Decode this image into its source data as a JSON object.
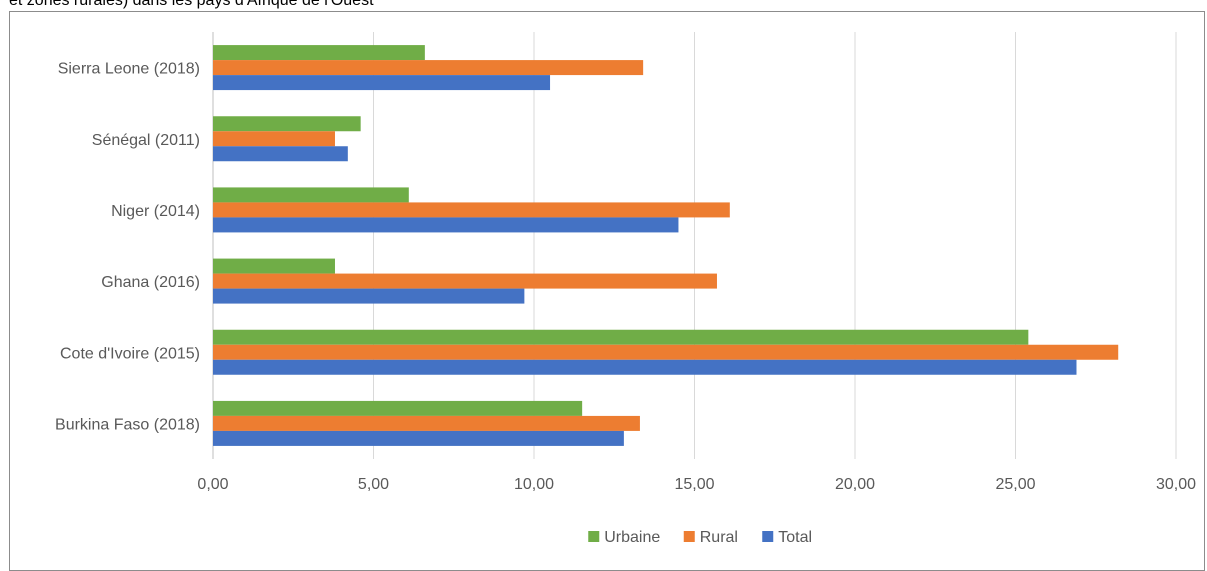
{
  "caption": "et zones rurales) dans les pays d'Afrique de l'Ouest",
  "chart_data": {
    "type": "bar",
    "orientation": "horizontal",
    "categories": [
      "Burkina Faso (2018)",
      "Cote d'Ivoire (2015)",
      "Ghana (2016)",
      "Niger (2014)",
      "Sénégal (2011)",
      "Sierra Leone (2018)"
    ],
    "series": [
      {
        "name": "Urbaine",
        "color": "#70AD47",
        "values": [
          11.5,
          25.4,
          3.8,
          6.1,
          4.6,
          6.6
        ]
      },
      {
        "name": "Rural",
        "color": "#ED7D31",
        "values": [
          13.3,
          28.2,
          15.7,
          16.1,
          3.8,
          13.4
        ]
      },
      {
        "name": "Total",
        "color": "#4472C4",
        "values": [
          12.8,
          26.9,
          9.7,
          14.5,
          4.2,
          10.5
        ]
      }
    ],
    "xlim": [
      0,
      30
    ],
    "xticks": [
      "0,00",
      "5,00",
      "10,00",
      "15,00",
      "20,00",
      "25,00",
      "30,00"
    ],
    "xgrid": true,
    "legend_position": "bottom",
    "title": "",
    "xlabel": "",
    "ylabel": ""
  }
}
